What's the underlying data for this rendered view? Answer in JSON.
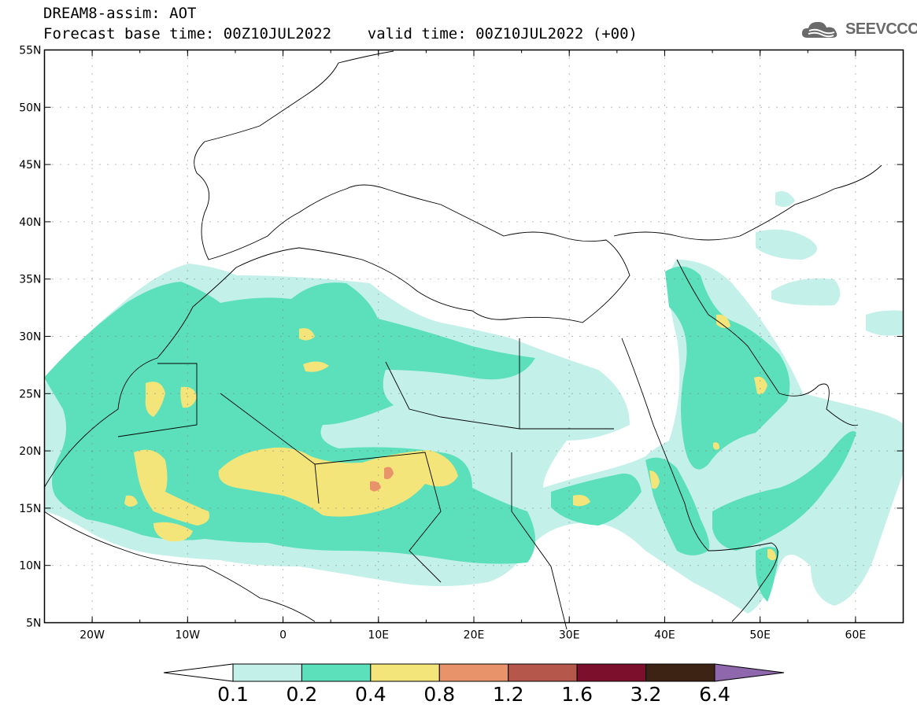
{
  "header": {
    "title_line1": "DREAM8-assim: AOT",
    "title_line2": "Forecast base time: 00Z10JUL2022    valid time: 00Z10JUL2022 (+00)",
    "logo_text": "SEEVCCC"
  },
  "map": {
    "lat_range": [
      5,
      55
    ],
    "lon_range": [
      -25,
      65
    ],
    "lat_labels": [
      "55N",
      "50N",
      "45N",
      "40N",
      "35N",
      "30N",
      "25N",
      "20N",
      "15N",
      "10N",
      "5N"
    ],
    "lon_labels": [
      "20W",
      "10W",
      "0",
      "10E",
      "20E",
      "30E",
      "40E",
      "50E",
      "60E"
    ],
    "grid": "dotted"
  },
  "colorbar": {
    "levels": [
      "0.1",
      "0.2",
      "0.4",
      "0.8",
      "1.2",
      "1.6",
      "3.2",
      "6.4"
    ],
    "colors": [
      "#c4f0ea",
      "#5ce0bb",
      "#f3e57a",
      "#e9936a",
      "#b5574a",
      "#7c0f2c",
      "#3d2313",
      "#8f67ad"
    ],
    "under_color": "#ffffff"
  }
}
